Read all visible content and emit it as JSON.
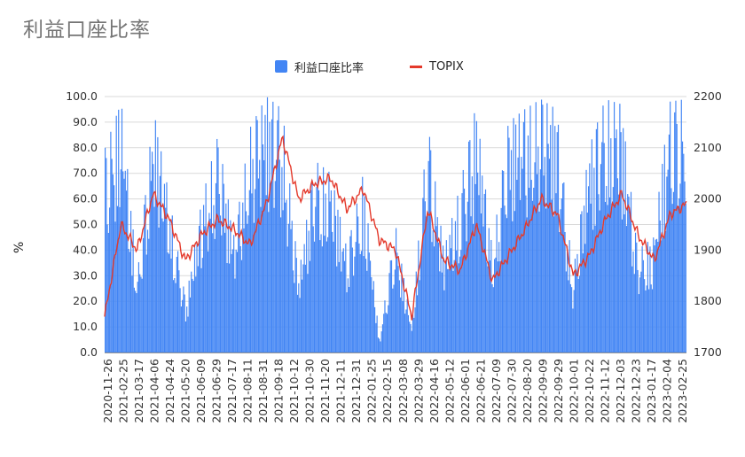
{
  "chart_data": {
    "type": "bar+line",
    "title": "利益口座比率",
    "ylabel": "%",
    "ylim": [
      0,
      100
    ],
    "y2lim": [
      1700,
      2200
    ],
    "y_ticks": [
      "100.0",
      "90.0",
      "80.0",
      "70.0",
      "60.0",
      "50.0",
      "40.0",
      "30.0",
      "20.0",
      "10.0",
      "0.0"
    ],
    "y2_ticks": [
      "2200",
      "2100",
      "2000",
      "1900",
      "1800",
      "1700"
    ],
    "grid": true,
    "legend_position": "top",
    "series": [
      {
        "name": "利益口座比率",
        "type": "bar",
        "color": "#4285f4"
      },
      {
        "name": "TOPIX",
        "type": "line",
        "color": "#e4392b"
      }
    ],
    "x_tick_labels": [
      "2020-11-26",
      "2021-02-25",
      "2021-03-17",
      "2021-04-06",
      "2021-04-24",
      "2021-05-20",
      "2021-06-09",
      "2021-06-29",
      "2021-07-17",
      "2021-08-11",
      "2021-08-31",
      "2021-09-18",
      "2021-10-12",
      "2021-10-30",
      "2021-11-20",
      "2021-12-11",
      "2021-12-31",
      "2022-01-25",
      "2022-02-15",
      "2022-03-08",
      "2022-03-29",
      "2022-04-16",
      "2022-05-12",
      "2022-06-01",
      "2022-06-21",
      "2022-07-09",
      "2022-07-30",
      "2022-08-20",
      "2022-09-09",
      "2022-09-29",
      "2022-10-01",
      "2022-10-22",
      "2022-11-12",
      "2022-12-03",
      "2022-12-23",
      "2023-01-17",
      "2023-02-04",
      "2023-02-25"
    ],
    "profit_ratio_keypoints": [
      {
        "date": "2020-11-26",
        "value": 80
      },
      {
        "date": "2021-02-25",
        "value": 98
      },
      {
        "date": "2021-03-17",
        "value": 30
      },
      {
        "date": "2021-04-06",
        "value": 95
      },
      {
        "date": "2021-04-24",
        "value": 60
      },
      {
        "date": "2021-05-20",
        "value": 20
      },
      {
        "date": "2021-06-09",
        "value": 60
      },
      {
        "date": "2021-06-29",
        "value": 85
      },
      {
        "date": "2021-07-17",
        "value": 45
      },
      {
        "date": "2021-08-11",
        "value": 88
      },
      {
        "date": "2021-08-31",
        "value": 100
      },
      {
        "date": "2021-09-18",
        "value": 95
      },
      {
        "date": "2021-10-12",
        "value": 30
      },
      {
        "date": "2021-10-30",
        "value": 75
      },
      {
        "date": "2021-11-20",
        "value": 70
      },
      {
        "date": "2021-12-11",
        "value": 40
      },
      {
        "date": "2021-12-31",
        "value": 70
      },
      {
        "date": "2022-01-25",
        "value": 5
      },
      {
        "date": "2022-02-15",
        "value": 50
      },
      {
        "date": "2022-03-08",
        "value": 10
      },
      {
        "date": "2022-03-29",
        "value": 90
      },
      {
        "date": "2022-04-16",
        "value": 40
      },
      {
        "date": "2022-05-12",
        "value": 65
      },
      {
        "date": "2022-06-01",
        "value": 97
      },
      {
        "date": "2022-06-21",
        "value": 40
      },
      {
        "date": "2022-07-09",
        "value": 90
      },
      {
        "date": "2022-07-30",
        "value": 95
      },
      {
        "date": "2022-08-20",
        "value": 99
      },
      {
        "date": "2022-09-09",
        "value": 95
      },
      {
        "date": "2022-09-29",
        "value": 30
      },
      {
        "date": "2022-10-22",
        "value": 80
      },
      {
        "date": "2022-11-12",
        "value": 99
      },
      {
        "date": "2022-12-03",
        "value": 97
      },
      {
        "date": "2022-12-23",
        "value": 40
      },
      {
        "date": "2023-01-17",
        "value": 45
      },
      {
        "date": "2023-02-04",
        "value": 98
      },
      {
        "date": "2023-02-25",
        "value": 99
      }
    ],
    "topix_keypoints": [
      {
        "date": "2020-11-26",
        "value": 1770
      },
      {
        "date": "2021-02-25",
        "value": 1950
      },
      {
        "date": "2021-03-17",
        "value": 1900
      },
      {
        "date": "2021-04-06",
        "value": 2010
      },
      {
        "date": "2021-04-24",
        "value": 1960
      },
      {
        "date": "2021-05-20",
        "value": 1880
      },
      {
        "date": "2021-06-09",
        "value": 1930
      },
      {
        "date": "2021-06-29",
        "value": 1960
      },
      {
        "date": "2021-07-17",
        "value": 1940
      },
      {
        "date": "2021-08-11",
        "value": 1910
      },
      {
        "date": "2021-08-31",
        "value": 1990
      },
      {
        "date": "2021-09-18",
        "value": 2120
      },
      {
        "date": "2021-10-12",
        "value": 2000
      },
      {
        "date": "2021-10-30",
        "value": 2030
      },
      {
        "date": "2021-11-20",
        "value": 2040
      },
      {
        "date": "2021-12-11",
        "value": 1980
      },
      {
        "date": "2021-12-31",
        "value": 2020
      },
      {
        "date": "2022-01-25",
        "value": 1920
      },
      {
        "date": "2022-02-15",
        "value": 1900
      },
      {
        "date": "2022-03-08",
        "value": 1770
      },
      {
        "date": "2022-03-29",
        "value": 1980
      },
      {
        "date": "2022-04-16",
        "value": 1880
      },
      {
        "date": "2022-05-12",
        "value": 1860
      },
      {
        "date": "2022-06-01",
        "value": 1950
      },
      {
        "date": "2022-06-21",
        "value": 1840
      },
      {
        "date": "2022-07-09",
        "value": 1890
      },
      {
        "date": "2022-07-30",
        "value": 1940
      },
      {
        "date": "2022-08-20",
        "value": 2000
      },
      {
        "date": "2022-09-09",
        "value": 1970
      },
      {
        "date": "2022-09-29",
        "value": 1850
      },
      {
        "date": "2022-10-22",
        "value": 1890
      },
      {
        "date": "2022-11-12",
        "value": 1960
      },
      {
        "date": "2022-12-03",
        "value": 2010
      },
      {
        "date": "2022-12-23",
        "value": 1930
      },
      {
        "date": "2023-01-17",
        "value": 1880
      },
      {
        "date": "2023-02-04",
        "value": 1970
      },
      {
        "date": "2023-02-25",
        "value": 1990
      }
    ]
  }
}
